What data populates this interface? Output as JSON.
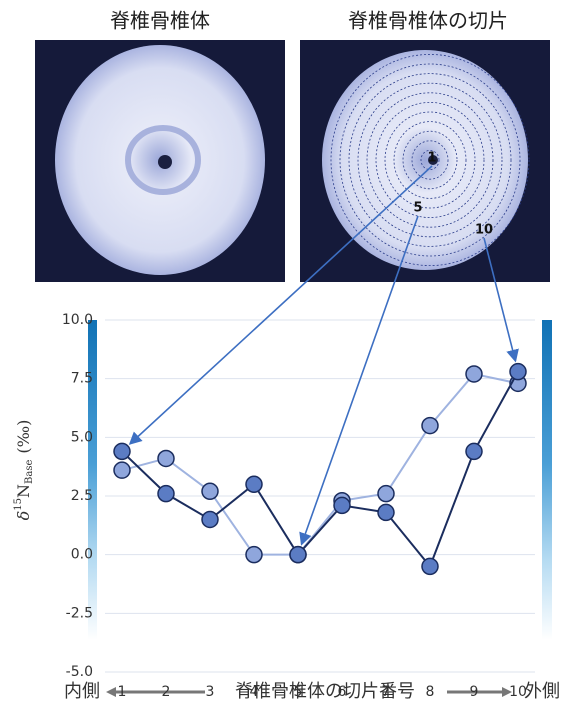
{
  "photos": {
    "left_title": "脊椎骨椎体",
    "right_title": "脊椎骨椎体の切片",
    "slice_labels": [
      "1",
      "5",
      "10"
    ]
  },
  "chart_data": {
    "type": "line",
    "categories": [
      "1",
      "2",
      "3",
      "4",
      "5",
      "6",
      "7",
      "8",
      "9",
      "10"
    ],
    "series": [
      {
        "color": "#9fb3e0",
        "marker_color": "#8fa6dc",
        "values": [
          3.6,
          4.1,
          2.7,
          0.0,
          0.0,
          2.3,
          2.6,
          5.5,
          7.7,
          7.3
        ]
      },
      {
        "color": "#1b2d5e",
        "marker_color": "#5b7cc4",
        "values": [
          4.4,
          2.6,
          1.5,
          3.0,
          0.0,
          2.1,
          1.8,
          -0.5,
          4.4,
          7.8
        ]
      }
    ],
    "ylim": [
      -5,
      10
    ],
    "yticks": [
      {
        "value": -5,
        "label": "-5.0"
      },
      {
        "value": -2.5,
        "label": "-2.5"
      },
      {
        "value": 0,
        "label": "0.0"
      },
      2.5,
      {
        "value": 5,
        "label": "5.0"
      },
      7.5,
      {
        "value": 10,
        "label": "10.0"
      }
    ],
    "grid": true,
    "y_label": {
      "delta": "δ",
      "sup": "15",
      "n": "N",
      "sub": "Base",
      "unit": "(‰)"
    },
    "x_label": "脊椎骨椎体の切片番号",
    "x_label_left": "内側",
    "x_label_right": "外側"
  }
}
